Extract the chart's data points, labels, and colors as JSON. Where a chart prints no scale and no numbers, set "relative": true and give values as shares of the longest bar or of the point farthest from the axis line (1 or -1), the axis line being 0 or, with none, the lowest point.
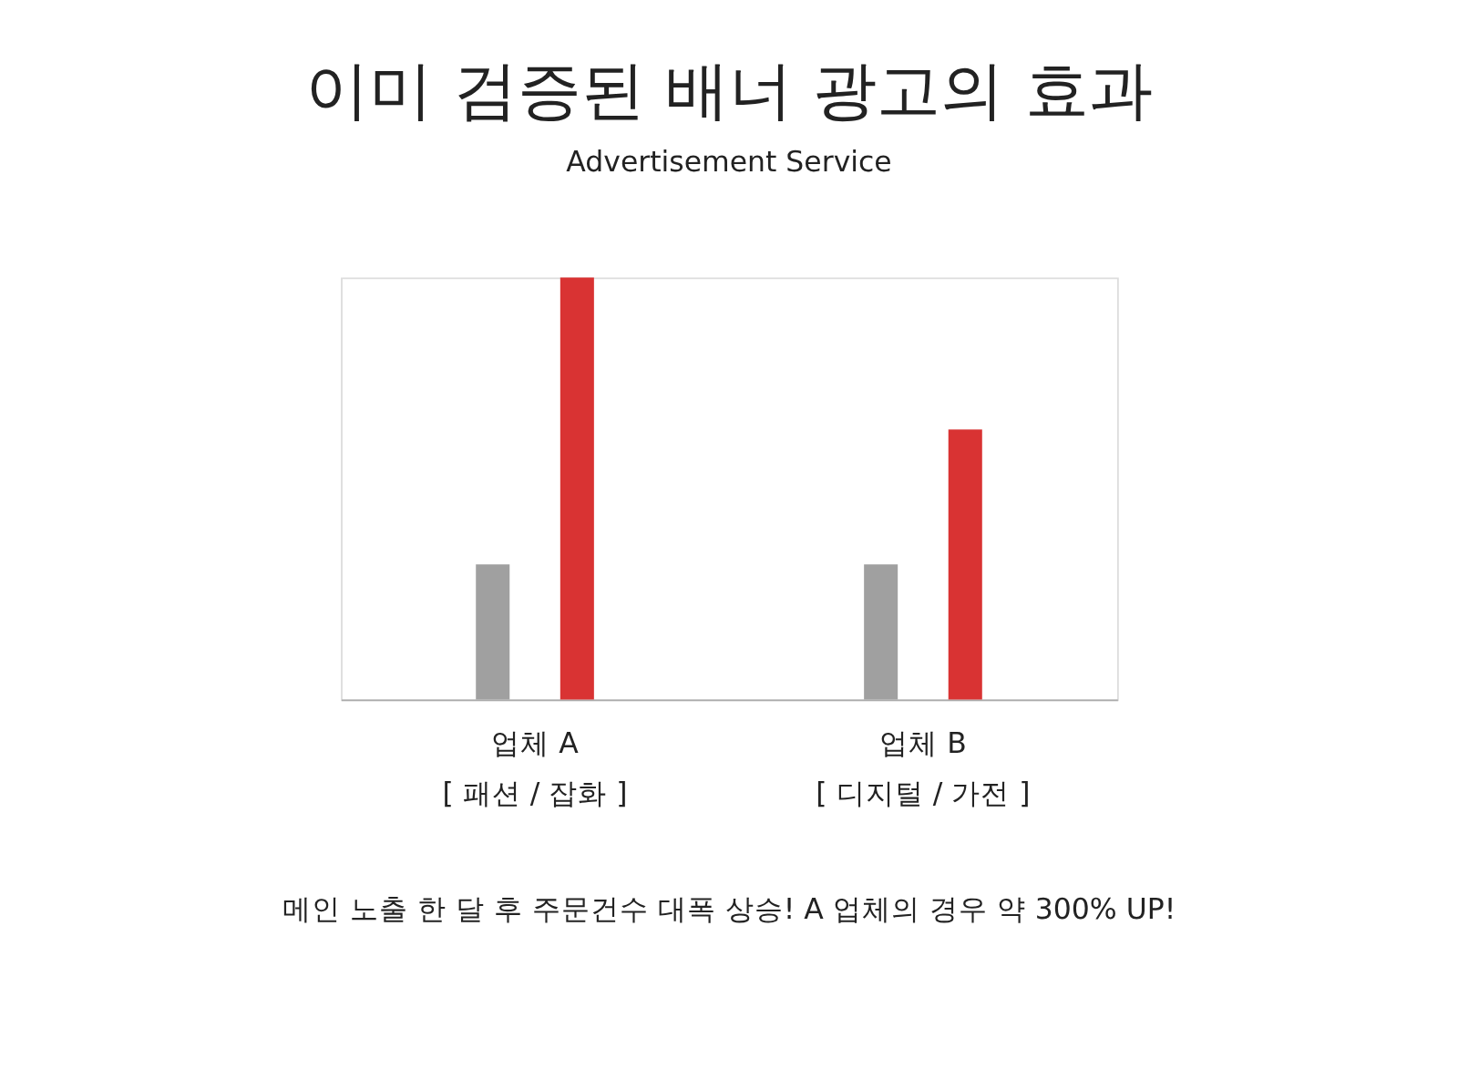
{
  "chart_data": {
    "type": "bar",
    "title": "이미 검증된 배너 광고의 효과",
    "subtitle": "Advertisement Service",
    "categories": [
      "업체 A\n[ 패션 / 잡화 ]",
      "업체 B\n[ 디지털 / 가전 ]"
    ],
    "relative": true,
    "series": [
      {
        "color": "#a0a0a0",
        "values": [
          0.32,
          0.32
        ]
      },
      {
        "color": "#d93333",
        "values": [
          1,
          0.64
        ]
      }
    ],
    "annotations": [
      "메인 노출 한 달 후 주문건수 대폭 상승! A 업체의 경우 약 300% UP!"
    ]
  }
}
